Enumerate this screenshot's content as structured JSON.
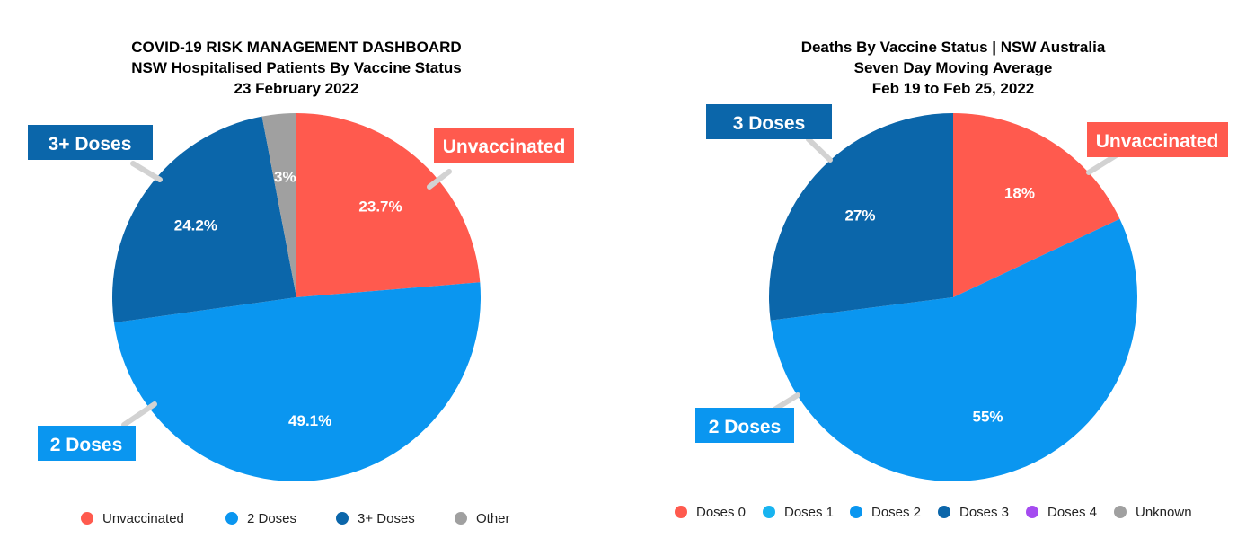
{
  "chart_data": [
    {
      "type": "pie",
      "title": "COVID-19 RISK MANAGEMENT DASHBOARD",
      "subtitle": "NSW Hospitalised Patients By Vaccine Status",
      "date": "23 February 2022",
      "start_at": "12 o'clock, clockwise",
      "slices": [
        {
          "name": "Unvaccinated",
          "value": 23.7,
          "label": "23.7%",
          "color": "#FF5A4E",
          "callout": "Unvaccinated"
        },
        {
          "name": "2 Doses",
          "value": 49.1,
          "label": "49.1%",
          "color": "#0A96F0",
          "callout": "2 Doses"
        },
        {
          "name": "3+ Doses",
          "value": 24.2,
          "label": "24.2%",
          "color": "#0B66AA",
          "callout": "3+ Doses"
        },
        {
          "name": "Other",
          "value": 3,
          "label": "3%",
          "color": "#A0A0A0",
          "callout": ""
        }
      ],
      "legend": {
        "placement": "bottom",
        "items": [
          {
            "label": "Unvaccinated",
            "color": "#FF5A4E"
          },
          {
            "label": "2 Doses",
            "color": "#0A96F0"
          },
          {
            "label": "3+ Doses",
            "color": "#0B66AA"
          },
          {
            "label": "Other",
            "color": "#A0A0A0"
          }
        ]
      }
    },
    {
      "type": "pie",
      "title": "Deaths By Vaccine Status | NSW Australia",
      "subtitle": "Seven Day Moving Average",
      "date": "Feb 19 to Feb 25, 2022",
      "start_at": "12 o'clock, clockwise",
      "slices": [
        {
          "name": "Doses 0",
          "value": 18,
          "label": "18%",
          "color": "#FF5A4E",
          "callout": "Unvaccinated"
        },
        {
          "name": "Doses 2",
          "value": 55,
          "label": "55%",
          "color": "#0A96F0",
          "callout": "2 Doses"
        },
        {
          "name": "Doses 3",
          "value": 27,
          "label": "27%",
          "color": "#0B66AA",
          "callout": "3 Doses"
        }
      ],
      "legend": {
        "placement": "bottom",
        "items": [
          {
            "label": "Doses 0",
            "color": "#FF5A4E"
          },
          {
            "label": "Doses 1",
            "color": "#18B4F0"
          },
          {
            "label": "Doses 2",
            "color": "#0A96F0"
          },
          {
            "label": "Doses 3",
            "color": "#0B66AA"
          },
          {
            "label": "Doses 4",
            "color": "#A54BF0"
          },
          {
            "label": "Unknown",
            "color": "#A0A0A0"
          }
        ]
      }
    }
  ]
}
